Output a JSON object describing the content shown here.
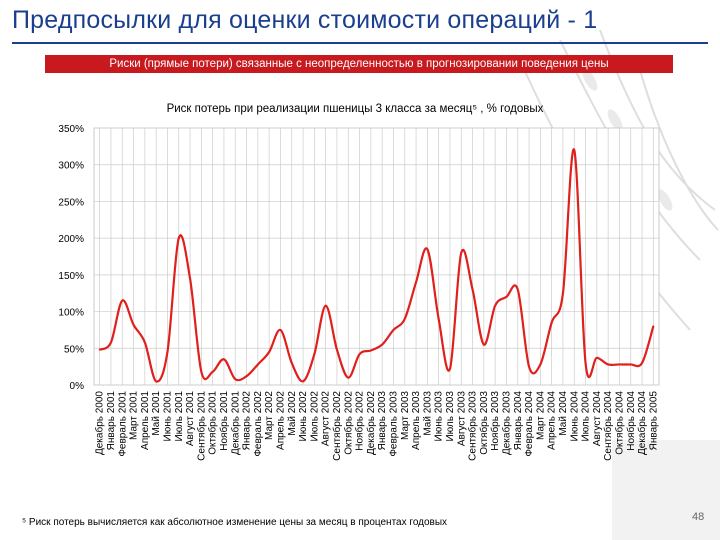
{
  "slide": {
    "title": "Предпосылки для оценки стоимости операций - 1",
    "banner": "Риски (прямые потери) связанные с неопределенностью в прогнозировании поведения цены",
    "footnote": "⁵ Риск потерь вычисляется как абсолютное изменение цены за месяц в процентах годовых",
    "page_number": "48"
  },
  "colors": {
    "title": "#1b3f8f",
    "banner_bg": "#c8191f",
    "series_line": "#e0201c",
    "grid": "#cccccc"
  },
  "chart_data": {
    "type": "line",
    "title": "Риск потерь при реализации пшеницы 3 класса за месяц⁵ , % годовых",
    "xlabel": "",
    "ylabel": "",
    "ylim": [
      0,
      350
    ],
    "yticks": [
      "0%",
      "50%",
      "100%",
      "150%",
      "200%",
      "250%",
      "300%",
      "350%"
    ],
    "grid": "vertical and horizontal",
    "categories": [
      "Декабрь 2000",
      "Январь 2001",
      "Февраль 2001",
      "Март 2001",
      "Апрель 2001",
      "Май 2001",
      "Июнь 2001",
      "Июль 2001",
      "Август 2001",
      "Сентябрь 2001",
      "Октябрь 2001",
      "Ноябрь 2001",
      "Декабрь 2001",
      "Январь 2002",
      "Февраль 2002",
      "Март 2002",
      "Апрель 2002",
      "Май 2002",
      "Июнь 2002",
      "Июль 2002",
      "Август 2002",
      "Сентябрь 2002",
      "Октябрь 2002",
      "Ноябрь 2002",
      "Декабрь 2002",
      "Январь 2003",
      "Февраль 2003",
      "Март 2003",
      "Апрель 2003",
      "Май 2003",
      "Июнь 2003",
      "Июль 2003",
      "Август 2003",
      "Сентябрь 2003",
      "Октябрь 2003",
      "Ноябрь 2003",
      "Декабрь 2003",
      "Январь 2004",
      "Февраль 2004",
      "Март 2004",
      "Апрель 2004",
      "Май 2004",
      "Июнь 2004",
      "Июль 2004",
      "Август 2004",
      "Сентябрь 2004",
      "Октябрь 2004",
      "Ноябрь 2004",
      "Декабрь 2004",
      "Январь 2005"
    ],
    "series": [
      {
        "values": [
          48,
          58,
          115,
          82,
          58,
          5,
          45,
          200,
          145,
          18,
          18,
          35,
          8,
          12,
          28,
          45,
          75,
          30,
          5,
          42,
          108,
          48,
          10,
          42,
          47,
          55,
          75,
          90,
          140,
          185,
          90,
          22,
          180,
          130,
          55,
          108,
          120,
          130,
          25,
          28,
          85,
          125,
          320,
          30,
          37,
          28,
          28,
          28,
          30,
          80
        ]
      }
    ]
  }
}
